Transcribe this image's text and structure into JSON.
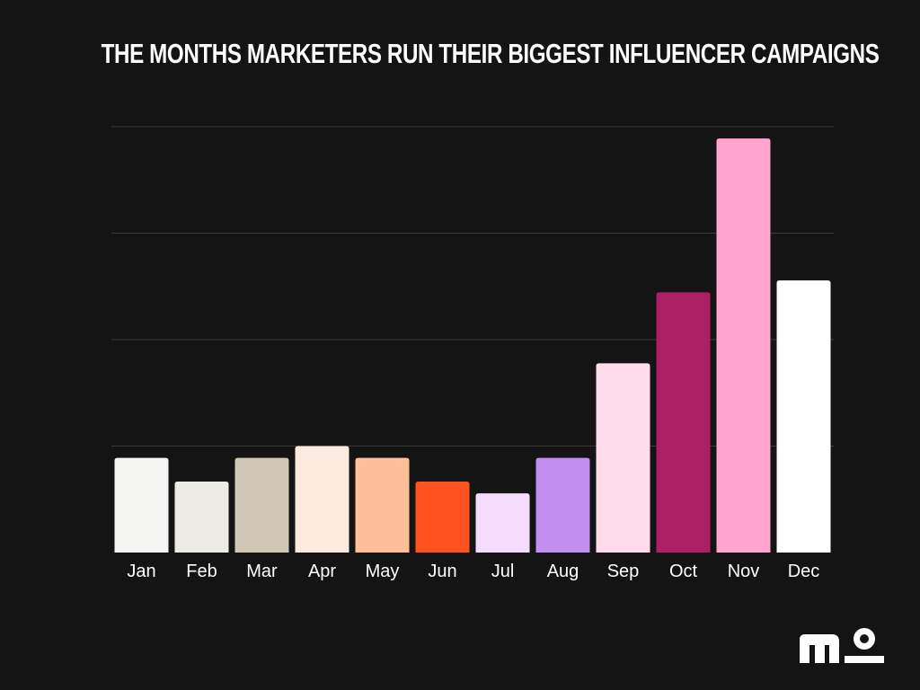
{
  "chart_data": {
    "type": "bar",
    "title": "THE MONTHS MARKETERS RUN THEIR BIGGEST INFLUENCER CAMPAIGNS",
    "categories": [
      "Jan",
      "Feb",
      "Mar",
      "Apr",
      "May",
      "Jun",
      "Jul",
      "Aug",
      "Sep",
      "Oct",
      "Nov",
      "Dec"
    ],
    "values": [
      8,
      6,
      8,
      9,
      8,
      6,
      5,
      8,
      16,
      22,
      35,
      23
    ],
    "colors": [
      "#f5f5f3",
      "#ecebe4",
      "#d0c7b4",
      "#fdeade",
      "#ffbf98",
      "#ff521e",
      "#f5dbfd",
      "#c28ef1",
      "#ffdaeb",
      "#ad1f65",
      "#ffa4cf",
      "#ffffff"
    ],
    "ylim": [
      0,
      36
    ],
    "gridlines": [
      9,
      18,
      27,
      36
    ],
    "grid": true,
    "xlabel": "",
    "ylabel": ""
  },
  "logo": {
    "icon": "mo-logo-icon"
  }
}
